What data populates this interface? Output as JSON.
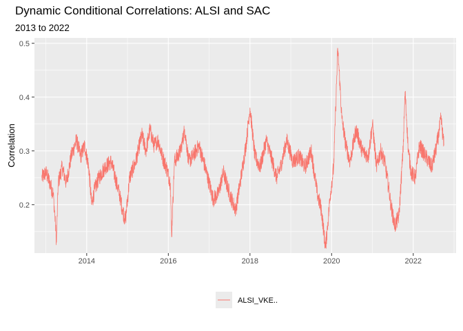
{
  "chart_data": {
    "type": "line",
    "title": "Dynamic Conditional Correlations: ALSI and SAC",
    "subtitle": "2013 to 2022",
    "xlabel": "",
    "ylabel": "Correlation",
    "xlim": [
      2012.72,
      2023.05
    ],
    "ylim": [
      0.11,
      0.51
    ],
    "x_ticks": [
      2014,
      2016,
      2018,
      2020,
      2022
    ],
    "x_tick_labels": [
      "2014",
      "2016",
      "2018",
      "2020",
      "2022"
    ],
    "y_ticks": [
      0.2,
      0.3,
      0.4,
      0.5
    ],
    "y_tick_labels": [
      "0.2",
      "0.3",
      "0.4",
      "0.5"
    ],
    "grid": true,
    "legend_position": "bottom",
    "series": [
      {
        "name": "ALSI_VKE..",
        "color": "#F8766D",
        "x": [
          2012.9,
          2013.0,
          2013.1,
          2013.18,
          2013.22,
          2013.26,
          2013.3,
          2013.4,
          2013.5,
          2013.62,
          2013.75,
          2013.85,
          2013.95,
          2014.05,
          2014.12,
          2014.2,
          2014.3,
          2014.45,
          2014.6,
          2014.7,
          2014.8,
          2014.88,
          2014.95,
          2015.05,
          2015.2,
          2015.35,
          2015.45,
          2015.55,
          2015.65,
          2015.75,
          2015.85,
          2015.95,
          2016.05,
          2016.08,
          2016.15,
          2016.3,
          2016.4,
          2016.5,
          2016.6,
          2016.75,
          2016.9,
          2017.0,
          2017.1,
          2017.22,
          2017.35,
          2017.5,
          2017.65,
          2017.8,
          2017.9,
          2018.0,
          2018.12,
          2018.25,
          2018.4,
          2018.55,
          2018.65,
          2018.75,
          2018.9,
          2019.05,
          2019.2,
          2019.35,
          2019.5,
          2019.65,
          2019.75,
          2019.85,
          2019.9,
          2019.97,
          2020.05,
          2020.1,
          2020.15,
          2020.2,
          2020.25,
          2020.35,
          2020.45,
          2020.6,
          2020.75,
          2020.9,
          2021.0,
          2021.1,
          2021.2,
          2021.3,
          2021.4,
          2021.45,
          2021.55,
          2021.65,
          2021.75,
          2021.8,
          2021.88,
          2021.95,
          2022.05,
          2022.15,
          2022.3,
          2022.45,
          2022.55,
          2022.62,
          2022.68,
          2022.75
        ],
        "y": [
          0.25,
          0.26,
          0.24,
          0.22,
          0.18,
          0.13,
          0.24,
          0.27,
          0.24,
          0.29,
          0.32,
          0.29,
          0.31,
          0.27,
          0.2,
          0.23,
          0.25,
          0.27,
          0.28,
          0.25,
          0.22,
          0.19,
          0.17,
          0.25,
          0.28,
          0.33,
          0.3,
          0.34,
          0.31,
          0.32,
          0.29,
          0.27,
          0.24,
          0.14,
          0.28,
          0.3,
          0.34,
          0.28,
          0.29,
          0.31,
          0.27,
          0.24,
          0.21,
          0.22,
          0.26,
          0.22,
          0.19,
          0.26,
          0.31,
          0.38,
          0.29,
          0.27,
          0.32,
          0.28,
          0.25,
          0.27,
          0.32,
          0.28,
          0.29,
          0.27,
          0.3,
          0.22,
          0.19,
          0.12,
          0.16,
          0.22,
          0.27,
          0.38,
          0.49,
          0.43,
          0.36,
          0.31,
          0.28,
          0.34,
          0.3,
          0.29,
          0.35,
          0.27,
          0.3,
          0.28,
          0.23,
          0.2,
          0.16,
          0.18,
          0.3,
          0.41,
          0.3,
          0.26,
          0.25,
          0.31,
          0.29,
          0.27,
          0.3,
          0.33,
          0.36,
          0.31
        ]
      }
    ]
  }
}
